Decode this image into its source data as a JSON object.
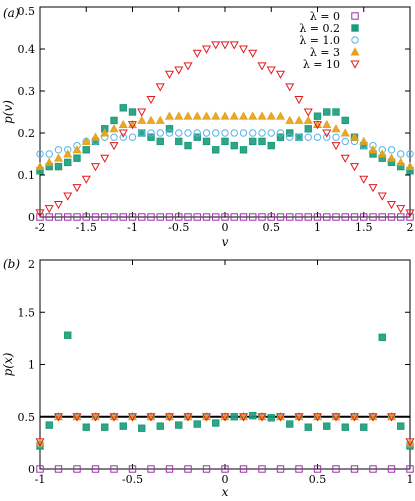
{
  "panel_labels": [
    "(a)",
    "(b)"
  ],
  "colors": {
    "lambda0": "#9b30a8",
    "lambda02": "#1a9c7a",
    "lambda1": "#56b4e9",
    "lambda3": "#e6a117",
    "lambda10": "#e41a1c",
    "reference_line": "#000000"
  },
  "chart_data": [
    {
      "type": "scatter",
      "panel": "(a)",
      "xlabel": "v",
      "ylabel": "p(v)",
      "xlim": [
        -2,
        2
      ],
      "ylim": [
        0,
        0.5
      ],
      "xticks": [
        "-2",
        "-1.5",
        "-1",
        "-0.5",
        "0",
        "0.5",
        "1",
        "1.5",
        "2"
      ],
      "yticks": [
        "0",
        "0.1",
        "0.2",
        "0.3",
        "0.4",
        "0.5"
      ],
      "legend_position": "top-right",
      "grid": false,
      "series": [
        {
          "name": "λ = 0",
          "marker": "open-square",
          "color": "#9b30a8",
          "x": [
            -2.0,
            -1.9,
            -1.8,
            -1.7,
            -1.6,
            -1.5,
            -1.4,
            -1.3,
            -1.2,
            -1.1,
            -1.0,
            -0.9,
            -0.8,
            -0.7,
            -0.6,
            -0.5,
            -0.4,
            -0.3,
            -0.2,
            -0.1,
            0.0,
            0.1,
            0.2,
            0.3,
            0.4,
            0.5,
            0.6,
            0.7,
            0.8,
            0.9,
            1.0,
            1.1,
            1.2,
            1.3,
            1.4,
            1.5,
            1.6,
            1.7,
            1.8,
            1.9,
            2.0
          ],
          "y": [
            0,
            0,
            0,
            0,
            0,
            0,
            0,
            0,
            0,
            0,
            0,
            0,
            0,
            0,
            0,
            0,
            0,
            0,
            0,
            0,
            0,
            0,
            0,
            0,
            0,
            0,
            0,
            0,
            0,
            0,
            0,
            0,
            0,
            0,
            0,
            0,
            0,
            0,
            0,
            0,
            0
          ]
        },
        {
          "name": "λ = 0.2",
          "marker": "filled-square",
          "color": "#1a9c7a",
          "x": [
            -2.0,
            -1.9,
            -1.8,
            -1.7,
            -1.6,
            -1.5,
            -1.4,
            -1.3,
            -1.2,
            -1.1,
            -1.0,
            -0.9,
            -0.8,
            -0.7,
            -0.6,
            -0.5,
            -0.4,
            -0.3,
            -0.2,
            -0.1,
            0.0,
            0.1,
            0.2,
            0.3,
            0.4,
            0.5,
            0.6,
            0.7,
            0.8,
            0.9,
            1.0,
            1.1,
            1.2,
            1.3,
            1.4,
            1.5,
            1.6,
            1.7,
            1.8,
            1.9,
            2.0
          ],
          "y": [
            0.11,
            0.12,
            0.12,
            0.13,
            0.14,
            0.16,
            0.18,
            0.21,
            0.23,
            0.26,
            0.25,
            0.2,
            0.19,
            0.18,
            0.21,
            0.18,
            0.17,
            0.19,
            0.18,
            0.16,
            0.18,
            0.17,
            0.16,
            0.18,
            0.18,
            0.17,
            0.19,
            0.2,
            0.19,
            0.21,
            0.24,
            0.25,
            0.25,
            0.23,
            0.19,
            0.17,
            0.15,
            0.14,
            0.13,
            0.12,
            0.11
          ]
        },
        {
          "name": "λ = 1.0",
          "marker": "open-circle",
          "color": "#56b4e9",
          "x": [
            -2.0,
            -1.9,
            -1.8,
            -1.7,
            -1.6,
            -1.5,
            -1.4,
            -1.3,
            -1.2,
            -1.1,
            -1.0,
            -0.9,
            -0.8,
            -0.7,
            -0.6,
            -0.5,
            -0.4,
            -0.3,
            -0.2,
            -0.1,
            0.0,
            0.1,
            0.2,
            0.3,
            0.4,
            0.5,
            0.6,
            0.7,
            0.8,
            0.9,
            1.0,
            1.1,
            1.2,
            1.3,
            1.4,
            1.5,
            1.6,
            1.7,
            1.8,
            1.9,
            2.0
          ],
          "y": [
            0.15,
            0.15,
            0.16,
            0.16,
            0.17,
            0.18,
            0.18,
            0.19,
            0.19,
            0.19,
            0.19,
            0.2,
            0.2,
            0.2,
            0.2,
            0.2,
            0.2,
            0.2,
            0.2,
            0.2,
            0.2,
            0.2,
            0.2,
            0.2,
            0.2,
            0.2,
            0.2,
            0.19,
            0.19,
            0.19,
            0.19,
            0.19,
            0.19,
            0.18,
            0.18,
            0.17,
            0.17,
            0.16,
            0.16,
            0.15,
            0.15
          ]
        },
        {
          "name": "λ = 3",
          "marker": "filled-triangle",
          "color": "#e6a117",
          "x": [
            -2.0,
            -1.9,
            -1.8,
            -1.7,
            -1.6,
            -1.5,
            -1.4,
            -1.3,
            -1.2,
            -1.1,
            -1.0,
            -0.9,
            -0.8,
            -0.7,
            -0.6,
            -0.5,
            -0.4,
            -0.3,
            -0.2,
            -0.1,
            0.0,
            0.1,
            0.2,
            0.3,
            0.4,
            0.5,
            0.6,
            0.7,
            0.8,
            0.9,
            1.0,
            1.1,
            1.2,
            1.3,
            1.4,
            1.5,
            1.6,
            1.7,
            1.8,
            1.9,
            2.0
          ],
          "y": [
            0.12,
            0.13,
            0.14,
            0.15,
            0.16,
            0.18,
            0.19,
            0.2,
            0.21,
            0.22,
            0.22,
            0.23,
            0.23,
            0.23,
            0.24,
            0.24,
            0.24,
            0.24,
            0.24,
            0.24,
            0.24,
            0.24,
            0.24,
            0.24,
            0.24,
            0.24,
            0.24,
            0.23,
            0.23,
            0.23,
            0.22,
            0.22,
            0.21,
            0.2,
            0.19,
            0.18,
            0.16,
            0.15,
            0.14,
            0.13,
            0.12
          ]
        },
        {
          "name": "λ = 10",
          "marker": "open-triangle-down",
          "color": "#e41a1c",
          "x": [
            -2.0,
            -1.9,
            -1.8,
            -1.7,
            -1.6,
            -1.5,
            -1.4,
            -1.3,
            -1.2,
            -1.1,
            -1.0,
            -0.9,
            -0.8,
            -0.7,
            -0.6,
            -0.5,
            -0.4,
            -0.3,
            -0.2,
            -0.1,
            0.0,
            0.1,
            0.2,
            0.3,
            0.4,
            0.5,
            0.6,
            0.7,
            0.8,
            0.9,
            1.0,
            1.1,
            1.2,
            1.3,
            1.4,
            1.5,
            1.6,
            1.7,
            1.8,
            1.9,
            2.0
          ],
          "y": [
            0.01,
            0.02,
            0.03,
            0.05,
            0.07,
            0.09,
            0.12,
            0.14,
            0.17,
            0.2,
            0.22,
            0.25,
            0.28,
            0.31,
            0.34,
            0.35,
            0.36,
            0.39,
            0.4,
            0.41,
            0.41,
            0.41,
            0.4,
            0.39,
            0.36,
            0.35,
            0.34,
            0.31,
            0.28,
            0.25,
            0.22,
            0.2,
            0.17,
            0.14,
            0.12,
            0.09,
            0.07,
            0.05,
            0.03,
            0.02,
            0.01
          ]
        }
      ]
    },
    {
      "type": "scatter",
      "panel": "(b)",
      "xlabel": "x",
      "ylabel": "p(x)",
      "xlim": [
        -1,
        1
      ],
      "ylim": [
        0,
        2
      ],
      "xticks": [
        "-1",
        "-0.5",
        "0",
        "0.5",
        "1"
      ],
      "yticks": [
        "0",
        "0.5",
        "1",
        "1.5",
        "2"
      ],
      "grid": false,
      "reference_line_y": 0.5,
      "series": [
        {
          "name": "λ = 0",
          "marker": "open-square",
          "color": "#9b30a8",
          "x": [
            -1.0,
            -0.9,
            -0.8,
            -0.7,
            -0.6,
            -0.5,
            -0.4,
            -0.3,
            -0.2,
            -0.1,
            0.0,
            0.1,
            0.2,
            0.3,
            0.4,
            0.5,
            0.6,
            0.7,
            0.8,
            0.9,
            1.0
          ],
          "y": [
            0,
            0,
            0,
            0,
            0,
            0,
            0,
            0,
            0,
            0,
            0,
            0,
            0,
            0,
            0,
            0,
            0,
            0,
            0,
            0,
            0
          ]
        },
        {
          "name": "λ = 0.2",
          "marker": "filled-square",
          "color": "#1a9c7a",
          "x": [
            -1.0,
            -0.95,
            -0.85,
            -0.75,
            -0.65,
            -0.55,
            -0.45,
            -0.35,
            -0.25,
            -0.15,
            -0.05,
            0.05,
            0.15,
            0.25,
            0.35,
            0.45,
            0.55,
            0.65,
            0.75,
            0.85,
            0.95,
            1.0
          ],
          "y": [
            0.22,
            0.42,
            1.28,
            0.4,
            0.4,
            0.41,
            0.39,
            0.41,
            0.42,
            0.43,
            0.44,
            0.5,
            0.51,
            0.49,
            0.43,
            0.4,
            0.41,
            0.4,
            0.4,
            1.26,
            0.41,
            0.22
          ]
        },
        {
          "name": "λ = 1.0",
          "marker": "open-circle",
          "color": "#56b4e9",
          "x": [
            -1.0,
            -0.9,
            -0.8,
            -0.7,
            -0.6,
            -0.5,
            -0.4,
            -0.3,
            -0.2,
            -0.1,
            0.0,
            0.1,
            0.2,
            0.3,
            0.4,
            0.5,
            0.6,
            0.7,
            0.8,
            0.9,
            1.0
          ],
          "y": [
            0.24,
            0.5,
            0.5,
            0.5,
            0.5,
            0.5,
            0.5,
            0.5,
            0.5,
            0.5,
            0.5,
            0.5,
            0.5,
            0.5,
            0.5,
            0.5,
            0.5,
            0.5,
            0.5,
            0.5,
            0.24
          ]
        },
        {
          "name": "λ = 3",
          "marker": "filled-triangle",
          "color": "#e6a117",
          "x": [
            -1.0,
            -0.9,
            -0.8,
            -0.7,
            -0.6,
            -0.5,
            -0.4,
            -0.3,
            -0.2,
            -0.1,
            0.0,
            0.1,
            0.2,
            0.3,
            0.4,
            0.5,
            0.6,
            0.7,
            0.8,
            0.9,
            1.0
          ],
          "y": [
            0.25,
            0.5,
            0.5,
            0.5,
            0.5,
            0.5,
            0.5,
            0.5,
            0.5,
            0.5,
            0.5,
            0.5,
            0.5,
            0.5,
            0.5,
            0.5,
            0.5,
            0.5,
            0.5,
            0.5,
            0.25
          ]
        },
        {
          "name": "λ = 10",
          "marker": "open-triangle-down",
          "color": "#e41a1c",
          "x": [
            -1.0,
            -0.9,
            -0.8,
            -0.7,
            -0.6,
            -0.5,
            -0.4,
            -0.3,
            -0.2,
            -0.1,
            0.0,
            0.1,
            0.2,
            0.3,
            0.4,
            0.5,
            0.6,
            0.7,
            0.8,
            0.9,
            1.0
          ],
          "y": [
            0.26,
            0.5,
            0.5,
            0.5,
            0.5,
            0.5,
            0.5,
            0.5,
            0.5,
            0.5,
            0.5,
            0.5,
            0.5,
            0.5,
            0.5,
            0.5,
            0.5,
            0.5,
            0.5,
            0.5,
            0.26
          ]
        }
      ]
    }
  ]
}
